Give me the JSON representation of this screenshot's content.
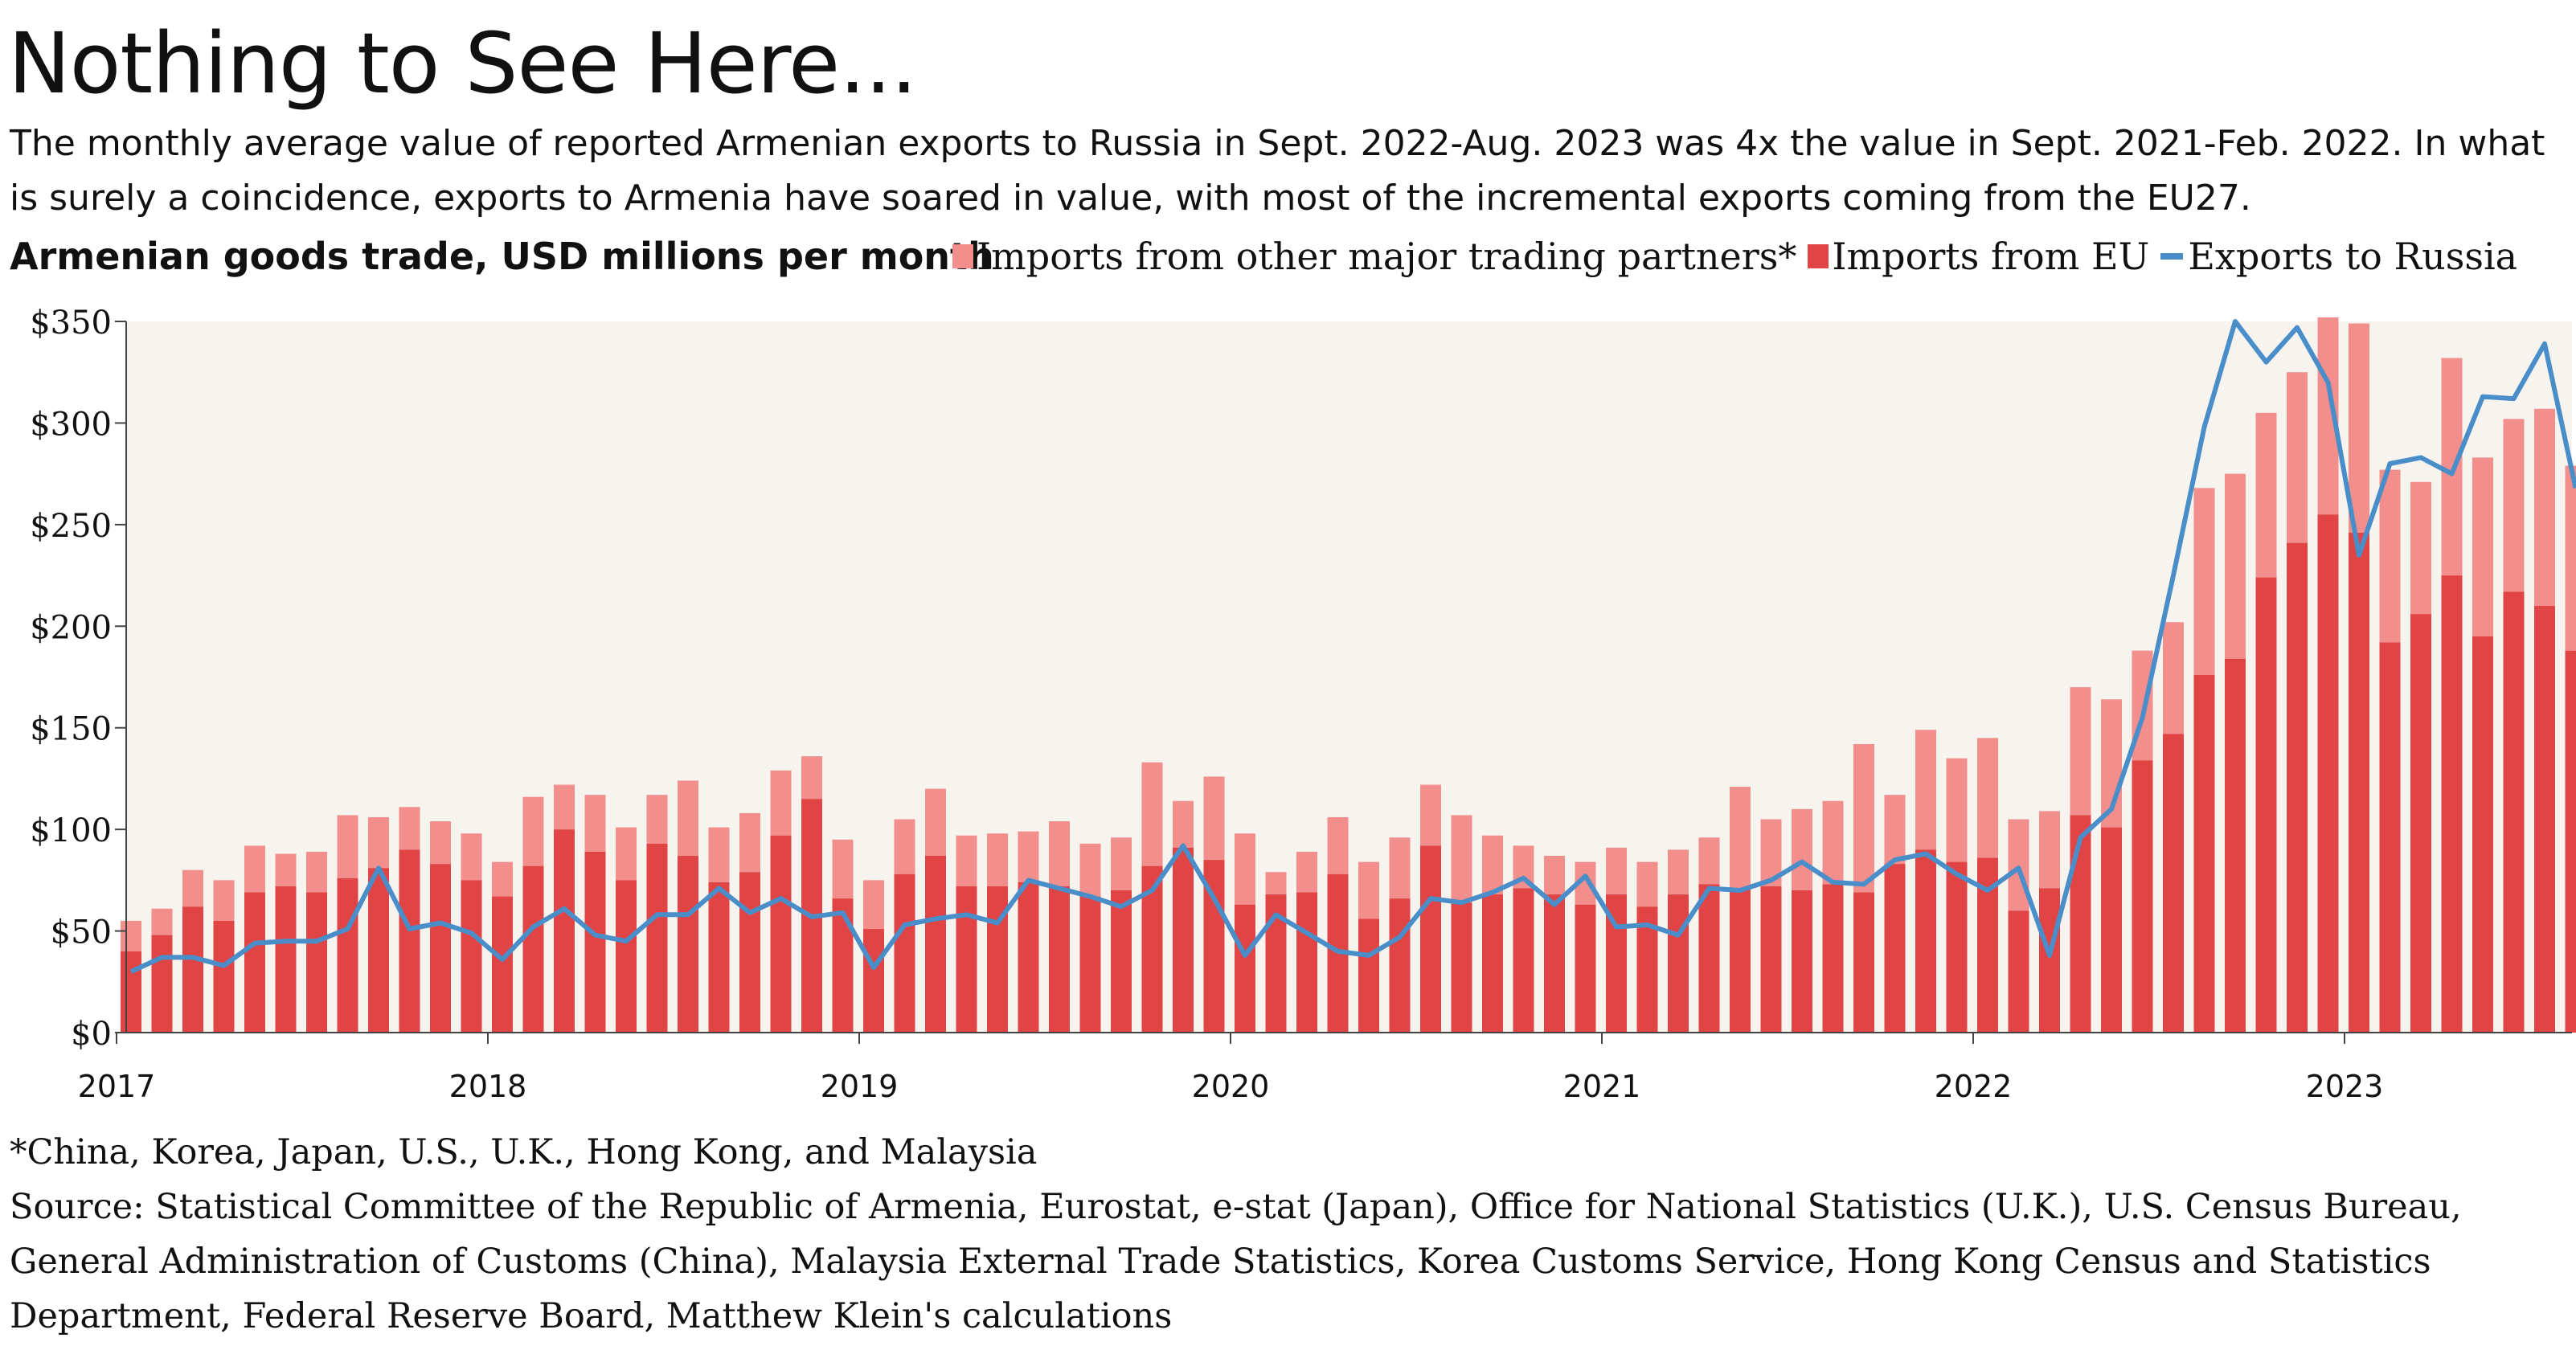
{
  "title": "Nothing to See Here...",
  "subtitle": "The monthly average value of reported Armenian exports to Russia in Sept. 2022-Aug. 2023 was 4x the value in Sept. 2021-Feb. 2022. In what is surely a coincidence, exports to Armenia have soared in value, with most of the incremental exports coming from the EU27.",
  "footnote": "*China, Korea, Japan, U.S., U.K., Hong Kong, and Malaysia",
  "source": "Source: Statistical Committee of the Republic of Armenia, Eurostat, e-stat (Japan), Office for National Statistics (U.K.), U.S. Census Bureau, General Administration of Customs (China), Malaysia External Trade Statistics, Korea Customs Service, Hong Kong Census and Statistics Department, Federal Reserve Board, Matthew Klein's calculations",
  "colors": {
    "other": "#f28e8b",
    "eu": "#e04444",
    "russia": "#4a8ec9",
    "plot_bg": "#f7f4ef",
    "axis": "#444444"
  },
  "chart_data": {
    "type": "bar",
    "stacked": true,
    "title": "Armenian goods trade, USD millions per month",
    "ylabel": "",
    "xlabel": "",
    "ylim": [
      0,
      350
    ],
    "yticks": [
      0,
      50,
      100,
      150,
      200,
      250,
      300,
      350
    ],
    "ytick_labels": [
      "$0",
      "$50",
      "$100",
      "$150",
      "$200",
      "$250",
      "$300",
      "$350"
    ],
    "xtick_labels": [
      "2017",
      "2018",
      "2019",
      "2020",
      "2021",
      "2022",
      "2023"
    ],
    "start_month": "2017-01",
    "series": [
      {
        "name": "Imports from EU",
        "kind": "bar",
        "values": [
          40,
          48,
          62,
          55,
          69,
          72,
          69,
          76,
          81,
          90,
          83,
          75,
          67,
          82,
          100,
          89,
          75,
          93,
          87,
          74,
          79,
          97,
          115,
          66,
          51,
          78,
          87,
          72,
          72,
          74,
          72,
          67,
          70,
          82,
          91,
          85,
          63,
          68,
          69,
          78,
          56,
          66,
          92,
          64,
          68,
          71,
          68,
          63,
          68,
          62,
          68,
          73,
          71,
          72,
          70,
          73,
          69,
          83,
          90,
          84,
          86,
          60,
          71,
          107,
          101,
          134,
          147,
          176,
          184,
          224,
          241,
          255,
          246,
          192,
          206,
          225,
          195,
          217,
          210,
          188
        ]
      },
      {
        "name": "Imports from other major trading partners*",
        "kind": "bar",
        "totals": [
          55,
          61,
          80,
          75,
          92,
          88,
          89,
          107,
          106,
          111,
          104,
          98,
          84,
          116,
          122,
          117,
          101,
          117,
          124,
          101,
          108,
          129,
          136,
          95,
          75,
          105,
          120,
          97,
          98,
          99,
          104,
          93,
          96,
          133,
          114,
          126,
          98,
          79,
          89,
          106,
          84,
          96,
          122,
          107,
          97,
          92,
          87,
          84,
          91,
          84,
          90,
          96,
          121,
          105,
          110,
          114,
          142,
          117,
          149,
          135,
          145,
          105,
          109,
          170,
          164,
          188,
          202,
          268,
          275,
          305,
          325,
          352,
          349,
          277,
          271,
          332,
          283,
          302,
          307,
          279
        ]
      },
      {
        "name": "Exports to Russia",
        "kind": "line",
        "values": [
          30,
          37,
          37,
          33,
          44,
          45,
          45,
          51,
          81,
          51,
          54,
          49,
          36,
          52,
          61,
          48,
          45,
          58,
          58,
          71,
          59,
          66,
          57,
          59,
          32,
          53,
          56,
          58,
          54,
          75,
          71,
          67,
          62,
          70,
          92,
          66,
          38,
          58,
          49,
          40,
          38,
          47,
          66,
          64,
          69,
          76,
          63,
          77,
          52,
          53,
          48,
          71,
          70,
          75,
          84,
          74,
          73,
          85,
          88,
          78,
          70,
          81,
          38,
          96,
          110,
          155,
          225,
          298,
          350,
          330,
          347,
          320,
          235,
          280,
          283,
          275,
          313,
          312,
          339,
          268
        ]
      }
    ]
  }
}
